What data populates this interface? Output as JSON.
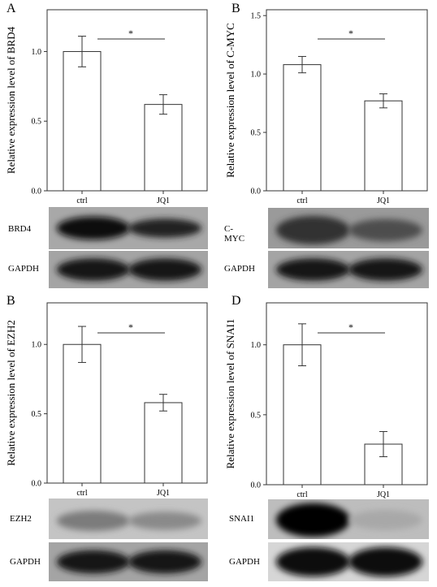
{
  "panels": [
    {
      "letter": "A",
      "blots": [
        "BRD4",
        "GAPDH"
      ]
    },
    {
      "letter": "B",
      "blots": [
        "C-MYC",
        "GAPDH"
      ]
    },
    {
      "letter": "B",
      "blots": [
        "EZH2",
        "GAPDH"
      ]
    },
    {
      "letter": "D",
      "blots": [
        "SNAI1",
        "GAPDH"
      ]
    }
  ],
  "chart_data": [
    {
      "type": "bar",
      "categories": [
        "ctrl",
        "JQ1"
      ],
      "values": [
        1.0,
        0.62
      ],
      "errors": [
        0.11,
        0.07
      ],
      "ylabel": "Relative expression level of BRD4",
      "ylim": [
        0,
        1.3
      ],
      "yticks": [
        "0.0",
        "0.5",
        "1.0"
      ],
      "significance": "*"
    },
    {
      "type": "bar",
      "categories": [
        "ctrl",
        "JQ1"
      ],
      "values": [
        1.08,
        0.77
      ],
      "errors": [
        0.07,
        0.06
      ],
      "ylabel": "Relative expression level of C-MYC",
      "ylim": [
        0,
        1.55
      ],
      "yticks": [
        "0.0",
        "0.5",
        "1.0",
        "1.5"
      ],
      "significance": "*"
    },
    {
      "type": "bar",
      "categories": [
        "ctrl",
        "JQ1"
      ],
      "values": [
        1.0,
        0.58
      ],
      "errors": [
        0.13,
        0.06
      ],
      "ylabel": "Relative expression level of EZH2",
      "ylim": [
        0,
        1.3
      ],
      "yticks": [
        "0.0",
        "0.5",
        "1.0"
      ],
      "significance": "*"
    },
    {
      "type": "bar",
      "categories": [
        "ctrl",
        "JQ1"
      ],
      "values": [
        1.0,
        0.29
      ],
      "errors": [
        0.15,
        0.09
      ],
      "ylabel": "Relative expression level of SNAI1",
      "ylim": [
        0,
        1.3
      ],
      "yticks": [
        "0.0",
        "0.5",
        "1.0"
      ],
      "significance": "*"
    }
  ]
}
